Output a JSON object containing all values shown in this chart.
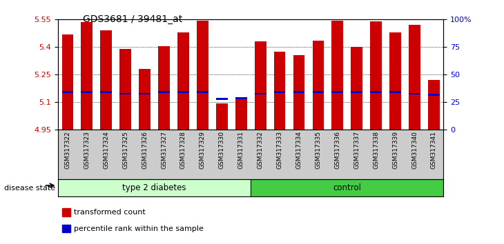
{
  "title": "GDS3681 / 39481_at",
  "samples": [
    "GSM317322",
    "GSM317323",
    "GSM317324",
    "GSM317325",
    "GSM317326",
    "GSM317327",
    "GSM317328",
    "GSM317329",
    "GSM317330",
    "GSM317331",
    "GSM317332",
    "GSM317333",
    "GSM317334",
    "GSM317335",
    "GSM317336",
    "GSM317337",
    "GSM317338",
    "GSM317339",
    "GSM317340",
    "GSM317341"
  ],
  "transformed_count": [
    5.47,
    5.535,
    5.49,
    5.39,
    5.28,
    5.405,
    5.48,
    5.545,
    5.09,
    5.115,
    5.43,
    5.375,
    5.355,
    5.435,
    5.545,
    5.4,
    5.54,
    5.48,
    5.52,
    5.22
  ],
  "percentile_rank": [
    5.155,
    5.155,
    5.155,
    5.145,
    5.145,
    5.155,
    5.155,
    5.155,
    5.115,
    5.12,
    5.145,
    5.155,
    5.155,
    5.155,
    5.155,
    5.155,
    5.155,
    5.155,
    5.145,
    5.14
  ],
  "groups": {
    "type 2 diabetes": [
      0,
      9
    ],
    "control": [
      10,
      19
    ]
  },
  "ymin": 4.95,
  "ymax": 5.55,
  "yticks": [
    4.95,
    5.1,
    5.25,
    5.4,
    5.55
  ],
  "ytick_labels": [
    "4.95",
    "5.1",
    "5.25",
    "5.4",
    "5.55"
  ],
  "right_yticks": [
    0,
    25,
    50,
    75,
    100
  ],
  "right_ytick_labels": [
    "0",
    "25",
    "50",
    "75",
    "100%"
  ],
  "bar_color": "#cc0000",
  "percentile_color": "#0000cc",
  "group1_color": "#ccffcc",
  "group2_color": "#44cc44",
  "xlabel_bg_color": "#cccccc",
  "label_color_left": "#cc0000",
  "label_color_right": "#0000cc",
  "bar_width": 0.6,
  "disease_state_label": "disease state",
  "legend_items": [
    "transformed count",
    "percentile rank within the sample"
  ],
  "legend_colors": [
    "#cc0000",
    "#0000cc"
  ]
}
